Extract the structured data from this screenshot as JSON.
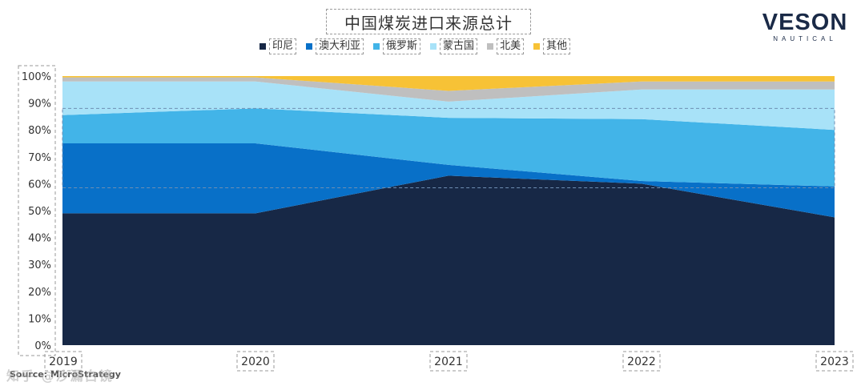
{
  "title": "中国煤炭进口来源总计",
  "logo": {
    "main": "VESON",
    "sub": "NAUTICAL"
  },
  "source": "Source: MicroStrategy",
  "watermark": "知乎 @沙漏白镜",
  "colors": {
    "印尼": "#172846",
    "澳大利亚": "#0870c8",
    "俄罗斯": "#42b4e8",
    "蒙古国": "#a8e2f8",
    "北美": "#bfbfbf",
    "其他": "#f7c236"
  },
  "chart_data": {
    "type": "area",
    "stacked": true,
    "title": "中国煤炭进口来源总计",
    "categories": [
      "2019",
      "2020",
      "2021",
      "2022",
      "2023"
    ],
    "series": [
      {
        "name": "印尼",
        "values": [
          49,
          49,
          63,
          60,
          47.5
        ]
      },
      {
        "name": "澳大利亚",
        "values": [
          26,
          26,
          4,
          1,
          11.5
        ]
      },
      {
        "name": "俄罗斯",
        "values": [
          10.5,
          13,
          17.5,
          23,
          21
        ]
      },
      {
        "name": "蒙古国",
        "values": [
          12.5,
          10,
          6,
          11,
          15
        ]
      },
      {
        "name": "北美",
        "values": [
          1.5,
          1.5,
          4,
          3,
          3
        ]
      },
      {
        "name": "其他",
        "values": [
          0.5,
          0.5,
          5.5,
          2,
          2
        ]
      }
    ],
    "ylim": [
      0,
      100
    ],
    "yticks": [
      "0%",
      "10%",
      "20%",
      "30%",
      "40%",
      "50%",
      "60%",
      "70%",
      "80%",
      "90%",
      "100%"
    ],
    "legend": "top-center",
    "xlabel": "",
    "ylabel": ""
  }
}
